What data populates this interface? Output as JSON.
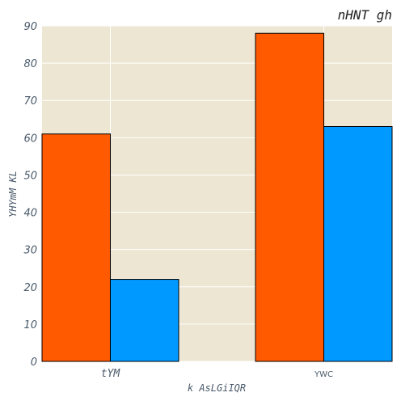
{
  "chart_data": {
    "type": "bar",
    "title": "nHNT gh",
    "xlabel": "k AsLGiIQR",
    "ylabel": "YHYmM KL",
    "categories": [
      "tYM",
      "YWC"
    ],
    "series": [
      {
        "values": [
          61,
          88
        ],
        "color": "#ff5a00"
      },
      {
        "values": [
          22,
          63
        ],
        "color": "#0099ff"
      }
    ],
    "ylim": [
      0,
      90
    ],
    "yticks": [
      0,
      10,
      20,
      30,
      40,
      50,
      60,
      70,
      80,
      90
    ],
    "grid": true,
    "background": "#ede6d2",
    "gridColor": "#ffffff"
  }
}
